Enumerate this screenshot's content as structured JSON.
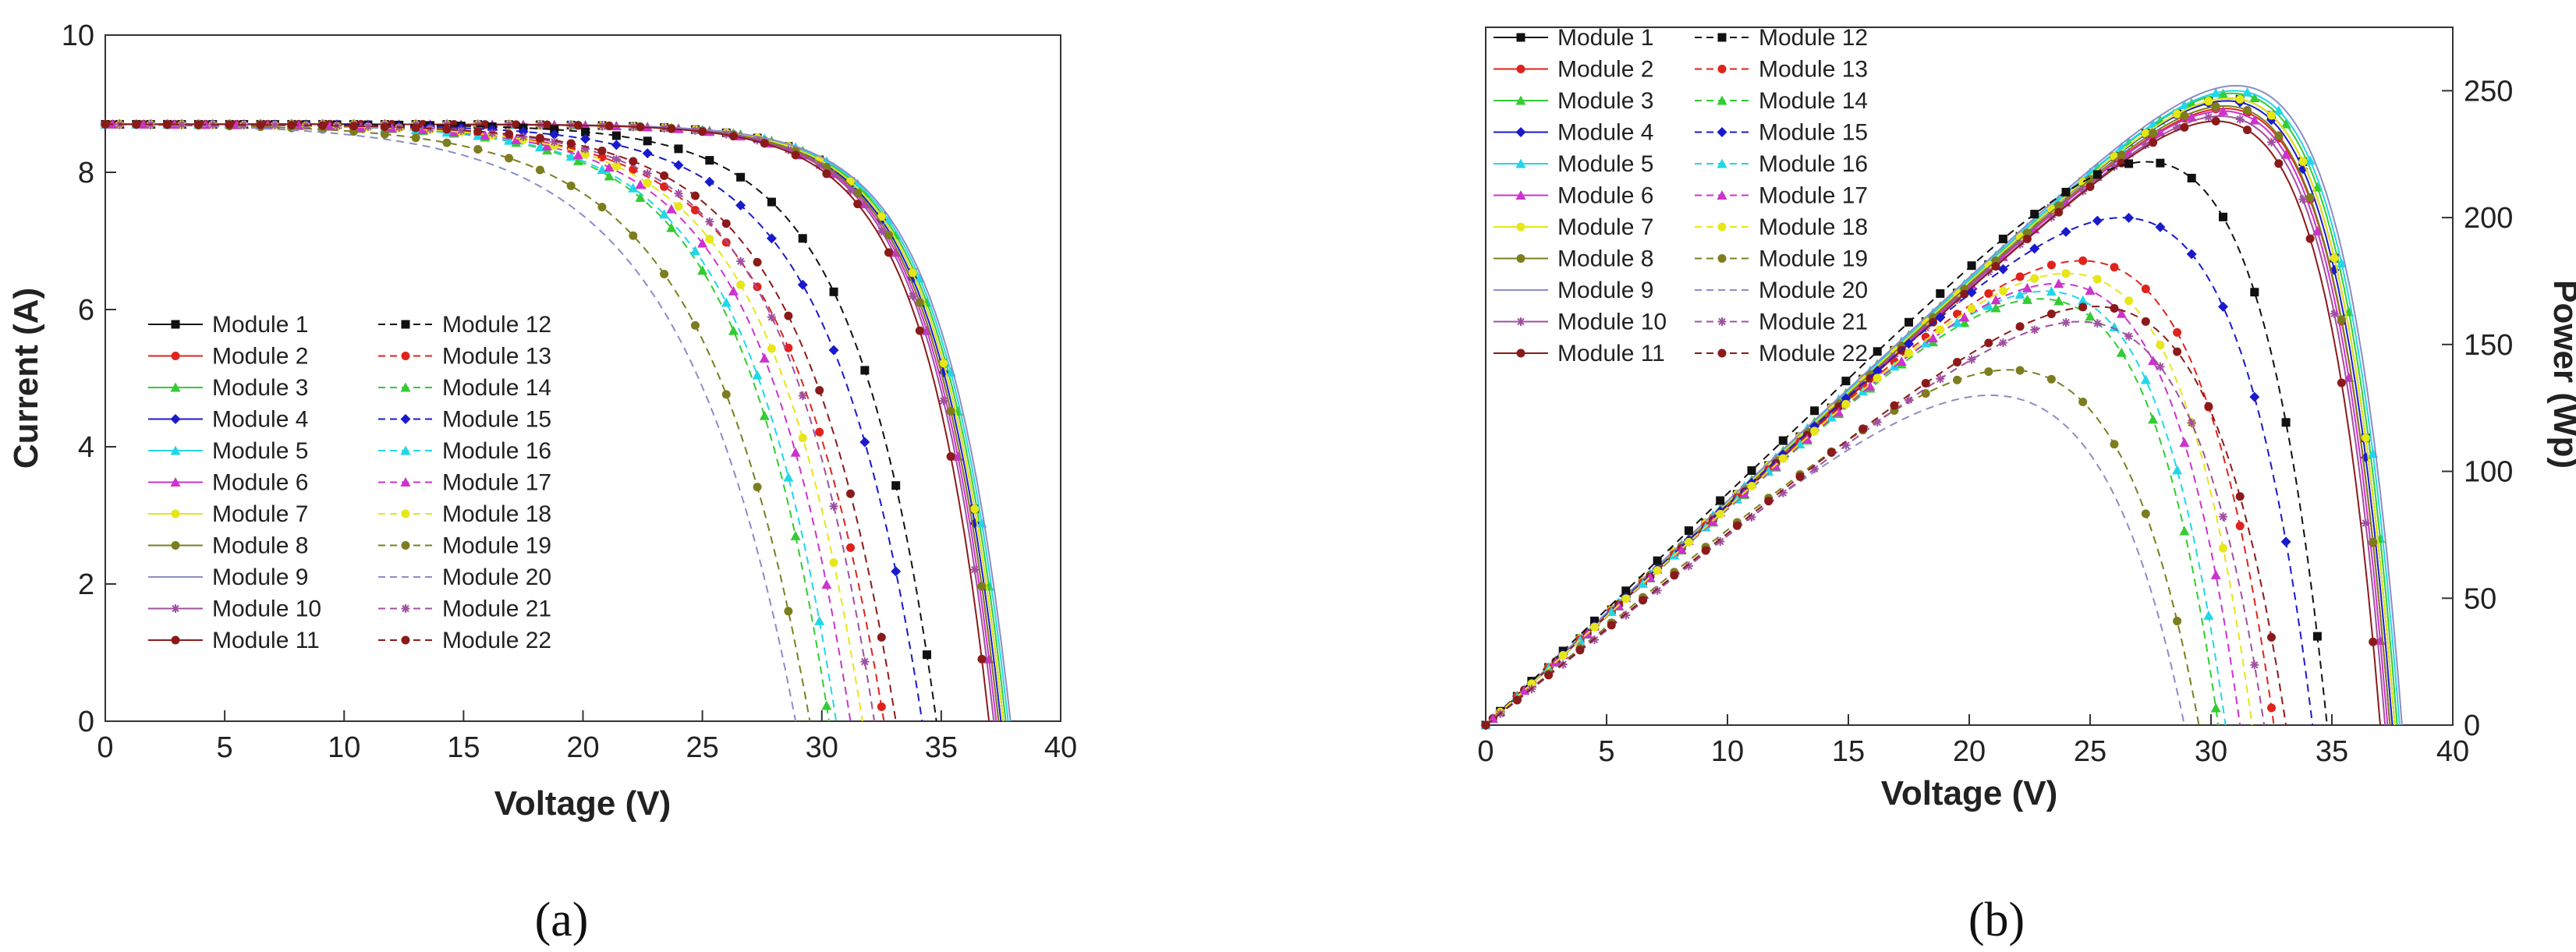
{
  "chart_data": [
    {
      "type": "line",
      "caption": "(a)",
      "xlabel": "Voltage (V)",
      "ylabel": "Current (A)",
      "xlim": [
        0,
        40
      ],
      "ylim": [
        0,
        10
      ],
      "xticks": [
        0,
        5,
        10,
        15,
        20,
        25,
        30,
        35,
        40
      ],
      "yticks": [
        0,
        2,
        4,
        6,
        8,
        10
      ],
      "grid": false,
      "legend_position": "lower-left",
      "series": [
        {
          "name": "Module 1",
          "color": "#111111",
          "marker": "square",
          "dash": false,
          "isc": 8.7,
          "voc": 37.6,
          "vmp": 30.5
        },
        {
          "name": "Module 2",
          "color": "#e0231c",
          "marker": "circle",
          "dash": false,
          "isc": 8.7,
          "voc": 37.4,
          "vmp": 30.3
        },
        {
          "name": "Module 3",
          "color": "#33cc33",
          "marker": "triangle",
          "dash": false,
          "isc": 8.7,
          "voc": 37.7,
          "vmp": 30.6
        },
        {
          "name": "Module 4",
          "color": "#1a1acc",
          "marker": "diamond",
          "dash": false,
          "isc": 8.7,
          "voc": 37.5,
          "vmp": 30.4
        },
        {
          "name": "Module 5",
          "color": "#22d6e8",
          "marker": "triangle",
          "dash": false,
          "isc": 8.7,
          "voc": 37.8,
          "vmp": 30.7
        },
        {
          "name": "Module 6",
          "color": "#cc33cc",
          "marker": "triangle",
          "dash": false,
          "isc": 8.7,
          "voc": 37.3,
          "vmp": 30.2
        },
        {
          "name": "Module 7",
          "color": "#e6e619",
          "marker": "circle",
          "dash": false,
          "isc": 8.7,
          "voc": 37.6,
          "vmp": 30.5
        },
        {
          "name": "Module 8",
          "color": "#7d7d1f",
          "marker": "circle",
          "dash": false,
          "isc": 8.7,
          "voc": 37.4,
          "vmp": 30.3
        },
        {
          "name": "Module 9",
          "color": "#8c8cc8",
          "marker": "none",
          "dash": false,
          "isc": 8.7,
          "voc": 37.9,
          "vmp": 30.8
        },
        {
          "name": "Module 10",
          "color": "#a050a0",
          "marker": "star",
          "dash": false,
          "isc": 8.7,
          "voc": 37.2,
          "vmp": 30.1
        },
        {
          "name": "Module 11",
          "color": "#8b1a1a",
          "marker": "circle",
          "dash": false,
          "isc": 8.7,
          "voc": 37.0,
          "vmp": 29.9
        },
        {
          "name": "Module 12",
          "color": "#111111",
          "marker": "square",
          "dash": true,
          "isc": 8.7,
          "voc": 34.8,
          "vmp": 26.0
        },
        {
          "name": "Module 13",
          "color": "#e0231c",
          "marker": "circle",
          "dash": true,
          "isc": 8.7,
          "voc": 32.6,
          "vmp": 22.0
        },
        {
          "name": "Module 14",
          "color": "#33cc33",
          "marker": "triangle",
          "dash": true,
          "isc": 8.7,
          "voc": 30.3,
          "vmp": 20.5
        },
        {
          "name": "Module 15",
          "color": "#1a1acc",
          "marker": "diamond",
          "dash": true,
          "isc": 8.7,
          "voc": 34.2,
          "vmp": 24.3
        },
        {
          "name": "Module 16",
          "color": "#22d6e8",
          "marker": "triangle",
          "dash": true,
          "isc": 8.7,
          "voc": 30.6,
          "vmp": 20.7
        },
        {
          "name": "Module 17",
          "color": "#cc33cc",
          "marker": "triangle",
          "dash": true,
          "isc": 8.7,
          "voc": 31.2,
          "vmp": 21.2
        },
        {
          "name": "Module 18",
          "color": "#e6e619",
          "marker": "circle",
          "dash": true,
          "isc": 8.7,
          "voc": 31.7,
          "vmp": 21.6
        },
        {
          "name": "Module 19",
          "color": "#7d7d1f",
          "marker": "circle",
          "dash": true,
          "isc": 8.7,
          "voc": 29.5,
          "vmp": 18.0
        },
        {
          "name": "Module 20",
          "color": "#8c8cc8",
          "marker": "none",
          "dash": true,
          "isc": 8.7,
          "voc": 28.9,
          "vmp": 16.5
        },
        {
          "name": "Module 21",
          "color": "#a050a0",
          "marker": "star",
          "dash": true,
          "isc": 8.7,
          "voc": 32.2,
          "vmp": 22.3
        },
        {
          "name": "Module 22",
          "color": "#8b1a1a",
          "marker": "circle",
          "dash": true,
          "isc": 8.7,
          "voc": 33.1,
          "vmp": 22.8
        }
      ]
    },
    {
      "type": "line",
      "caption": "(b)",
      "xlabel": "Voltage (V)",
      "ylabel": "Power (Wp)",
      "xlim": [
        0,
        40
      ],
      "ylim": [
        0,
        275
      ],
      "xticks": [
        0,
        5,
        10,
        15,
        20,
        25,
        30,
        35,
        40
      ],
      "yticks": [
        0,
        50,
        100,
        150,
        200,
        250
      ],
      "y_axis_side": "right",
      "grid": false,
      "legend_position": "top-left",
      "peak_power": [
        247,
        243,
        249,
        246,
        250,
        242,
        247,
        244,
        252,
        240,
        238,
        222,
        183,
        168,
        200,
        171,
        174,
        178,
        140,
        130,
        159,
        165
      ]
    }
  ]
}
